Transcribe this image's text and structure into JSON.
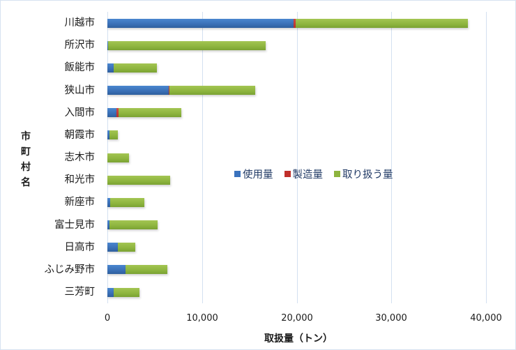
{
  "chart_data": {
    "type": "bar",
    "orientation": "horizontal",
    "stacked": true,
    "title": "",
    "xlabel": "取扱量（トン）",
    "ylabel": "市町村名",
    "xlim": [
      0,
      40000
    ],
    "xticks": [
      "0",
      "10,000",
      "20,000",
      "30,000",
      "40,000"
    ],
    "grid": "vertical",
    "legend_position": "center-right inside plot",
    "categories": [
      "川越市",
      "所沢市",
      "飯能市",
      "狭山市",
      "入間市",
      "朝霞市",
      "志木市",
      "和光市",
      "新座市",
      "富士見市",
      "日高市",
      "ふじみ野市",
      "三芳町"
    ],
    "series": [
      {
        "name": "使用量",
        "color": "#3a72bd",
        "values": [
          19700,
          100,
          660,
          6450,
          940,
          200,
          0,
          0,
          300,
          200,
          1110,
          1920,
          690
        ]
      },
      {
        "name": "製造量",
        "color": "#c0302b",
        "values": [
          180,
          0,
          0,
          60,
          210,
          0,
          0,
          0,
          0,
          0,
          0,
          0,
          0
        ]
      },
      {
        "name": "取り扱う量",
        "color": "#8db43e",
        "values": [
          18200,
          16600,
          4580,
          9110,
          6650,
          880,
          2310,
          6640,
          3610,
          5110,
          1840,
          4400,
          2680
        ]
      }
    ]
  },
  "axis": {
    "x_title": "取扱量（トン）",
    "y_title": "市町村名",
    "x_ticks": [
      "0",
      "10,000",
      "20,000",
      "30,000",
      "40,000"
    ]
  },
  "legend": {
    "items": [
      {
        "label": "使用量",
        "color": "#3a72bd"
      },
      {
        "label": "製造量",
        "color": "#c0302b"
      },
      {
        "label": "取り扱う量",
        "color": "#8db43e"
      }
    ]
  }
}
